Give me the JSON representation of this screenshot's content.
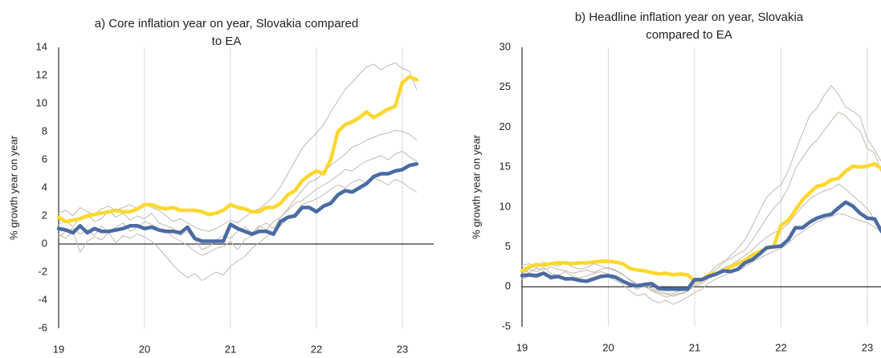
{
  "chart_data": [
    {
      "type": "line",
      "title": [
        "a) Core inflation year on year, Slovakia compared",
        "to EA"
      ],
      "y_label": "% growth year on year",
      "categories": [
        "19",
        null,
        null,
        null,
        null,
        null,
        null,
        null,
        null,
        null,
        null,
        null,
        "20",
        null,
        null,
        null,
        null,
        null,
        null,
        null,
        null,
        null,
        null,
        null,
        "21",
        null,
        null,
        null,
        null,
        null,
        null,
        null,
        null,
        null,
        null,
        null,
        "22",
        null,
        null,
        null,
        null,
        null,
        null,
        null,
        null,
        null,
        null,
        null,
        "23",
        null,
        null
      ],
      "ylim": [
        -6,
        14
      ],
      "yticks": [
        -6,
        -4,
        -2,
        0,
        2,
        4,
        6,
        8,
        10,
        12,
        14
      ],
      "grid": true,
      "series": [
        {
          "color": "#c4b8ad",
          "values": [
            2.2,
            2.4,
            2.0,
            2.6,
            2.3,
            2.1,
            2.5,
            2.7,
            2.4,
            2.6,
            2.8,
            2.5,
            2.9,
            2.6,
            2.4,
            2.0,
            1.6,
            1.8,
            1.5,
            1.2,
            1.0,
            0.9,
            1.1,
            1.4,
            1.7,
            1.5,
            1.9,
            2.3,
            2.5,
            2.9,
            3.4,
            4.1,
            5.0,
            5.9,
            6.8,
            7.4,
            7.9,
            8.5,
            9.4,
            10.2,
            11.0,
            11.5,
            12.1,
            12.6,
            12.8,
            12.4,
            12.7,
            12.9,
            12.5,
            12.3,
            11.0
          ]
        },
        {
          "color": "#c4b8ad",
          "values": [
            0.7,
            0.4,
            0.9,
            -0.6,
            0.2,
            0.5,
            0.3,
            0.8,
            0.1,
            0.6,
            0.4,
            0.7,
            0.5,
            0.2,
            -0.3,
            -0.9,
            -1.5,
            -2.0,
            -2.4,
            -2.1,
            -2.6,
            -2.3,
            -2.0,
            -2.2,
            -1.6,
            -1.2,
            -0.9,
            -0.3,
            0.1,
            0.5,
            0.9,
            1.3,
            1.8,
            2.2,
            2.8,
            3.0,
            3.2,
            3.5,
            3.9,
            4.2,
            4.0,
            4.4,
            4.6,
            4.3,
            4.7,
            4.5,
            4.2,
            4.6,
            4.4,
            4.0,
            3.7
          ]
        },
        {
          "color": "#c4b8ad",
          "values": [
            1.4,
            1.7,
            1.2,
            1.9,
            2.1,
            1.6,
            1.8,
            2.4,
            1.9,
            2.2,
            1.7,
            2.0,
            1.8,
            2.2,
            1.5,
            1.3,
            1.1,
            0.6,
            0.9,
            0.3,
            -0.4,
            -0.2,
            0.3,
            0.6,
            0.4,
            0.9,
            1.2,
            0.8,
            1.3,
            1.0,
            1.6,
            1.9,
            2.5,
            3.2,
            3.8,
            4.4,
            4.6,
            5.1,
            5.6,
            6.0,
            6.4,
            6.9,
            7.1,
            7.4,
            7.6,
            7.8,
            7.9,
            8.1,
            8.0,
            7.8,
            7.4
          ]
        },
        {
          "color": "#c4b8ad",
          "values": [
            0.5,
            0.9,
            1.1,
            0.7,
            1.0,
            0.6,
            1.3,
            0.8,
            1.2,
            1.5,
            0.9,
            1.2,
            1.6,
            1.4,
            1.1,
            0.9,
            0.5,
            0.2,
            -0.1,
            -0.5,
            -0.8,
            -0.6,
            -0.3,
            -0.2,
            0.2,
            -0.4,
            0.3,
            0.6,
            1.2,
            1.5,
            1.1,
            1.9,
            2.4,
            2.9,
            3.1,
            3.5,
            3.9,
            4.2,
            4.5,
            4.9,
            5.3,
            5.2,
            5.6,
            5.9,
            6.1,
            6.3,
            6.0,
            6.4,
            6.6,
            6.2,
            5.9
          ]
        },
        {
          "color": "#fcd82f",
          "values": [
            1.9,
            1.6,
            1.7,
            1.8,
            2.0,
            2.1,
            2.2,
            2.3,
            2.4,
            2.3,
            2.3,
            2.5,
            2.8,
            2.8,
            2.6,
            2.5,
            2.6,
            2.4,
            2.4,
            2.4,
            2.3,
            2.1,
            2.2,
            2.4,
            2.8,
            2.6,
            2.5,
            2.3,
            2.3,
            2.6,
            2.6,
            2.9,
            3.5,
            3.8,
            4.5,
            4.9,
            5.2,
            5.0,
            6.0,
            8.0,
            8.5,
            8.7,
            9.0,
            9.4,
            9.0,
            9.3,
            9.6,
            9.8,
            11.5,
            11.9,
            11.7
          ]
        },
        {
          "color": "#4a6ba3",
          "values": [
            1.1,
            1.0,
            0.8,
            1.3,
            0.8,
            1.1,
            0.9,
            0.9,
            1.0,
            1.1,
            1.3,
            1.3,
            1.1,
            1.2,
            1.0,
            0.9,
            0.9,
            0.8,
            1.2,
            0.4,
            0.2,
            0.2,
            0.2,
            0.2,
            1.4,
            1.1,
            0.9,
            0.7,
            0.9,
            0.9,
            0.7,
            1.6,
            1.9,
            2.0,
            2.6,
            2.6,
            2.3,
            2.7,
            2.9,
            3.5,
            3.8,
            3.7,
            4.0,
            4.3,
            4.8,
            5.0,
            5.0,
            5.2,
            5.3,
            5.6,
            5.7
          ]
        }
      ]
    },
    {
      "type": "line",
      "title": [
        "b) Headline inflation year on year, Slovakia",
        "compared to EA"
      ],
      "y_label": "% growth year on year",
      "categories": [
        "19",
        null,
        null,
        null,
        null,
        null,
        null,
        null,
        null,
        null,
        null,
        null,
        "20",
        null,
        null,
        null,
        null,
        null,
        null,
        null,
        null,
        null,
        null,
        null,
        "21",
        null,
        null,
        null,
        null,
        null,
        null,
        null,
        null,
        null,
        null,
        null,
        "22",
        null,
        null,
        null,
        null,
        null,
        null,
        null,
        null,
        null,
        null,
        null,
        "23",
        null,
        null
      ],
      "ylim": [
        -5,
        30
      ],
      "yticks": [
        -5,
        0,
        5,
        10,
        15,
        20,
        25,
        30
      ],
      "grid": true,
      "series": [
        {
          "color": "#c4b8ad",
          "values": [
            2.7,
            2.9,
            2.4,
            3.1,
            2.8,
            2.6,
            3.0,
            2.5,
            2.2,
            2.4,
            2.9,
            2.6,
            2.3,
            2.0,
            1.5,
            0.9,
            0.4,
            0.3,
            -0.2,
            -0.5,
            -0.8,
            -1.2,
            -0.9,
            -0.6,
            0.3,
            0.6,
            1.5,
            2.2,
            3.0,
            3.9,
            4.8,
            5.9,
            7.6,
            9.5,
            11.2,
            12.1,
            12.8,
            14.5,
            17.0,
            19.3,
            21.5,
            22.4,
            24.0,
            25.2,
            24.1,
            22.5,
            22.0,
            21.3,
            18.5,
            17.2,
            15.6
          ]
        },
        {
          "color": "#c4b8ad",
          "values": [
            1.0,
            1.3,
            1.1,
            1.5,
            0.9,
            1.2,
            0.8,
            1.0,
            0.6,
            0.9,
            1.2,
            1.5,
            1.2,
            0.8,
            0.3,
            -0.5,
            -1.1,
            -0.9,
            -1.6,
            -2.0,
            -1.7,
            -2.2,
            -1.8,
            -1.3,
            -0.7,
            -0.3,
            0.5,
            1.0,
            1.4,
            1.8,
            2.0,
            2.5,
            3.1,
            3.6,
            4.0,
            4.5,
            4.8,
            5.4,
            6.3,
            6.9,
            7.5,
            8.1,
            8.5,
            8.8,
            9.2,
            9.0,
            8.6,
            8.3,
            8.0,
            7.5,
            6.8
          ]
        },
        {
          "color": "#c4b8ad",
          "values": [
            2.0,
            1.8,
            2.3,
            2.1,
            2.5,
            2.2,
            2.0,
            1.7,
            1.9,
            2.1,
            1.8,
            2.2,
            2.4,
            2.1,
            1.6,
            0.8,
            0.2,
            0.0,
            -0.4,
            -0.7,
            -1.0,
            -0.8,
            -0.5,
            -0.1,
            0.5,
            0.8,
            1.7,
            2.6,
            3.2,
            3.5,
            4.1,
            4.6,
            5.8,
            7.2,
            8.6,
            9.9,
            10.8,
            12.4,
            14.8,
            16.2,
            17.5,
            18.4,
            19.6,
            20.8,
            21.9,
            21.4,
            20.3,
            19.5,
            17.3,
            16.8,
            14.2
          ]
        },
        {
          "color": "#c4b8ad",
          "values": [
            1.6,
            2.2,
            1.9,
            2.4,
            1.7,
            1.4,
            1.9,
            1.3,
            1.1,
            1.4,
            1.7,
            1.9,
            1.5,
            1.3,
            0.9,
            0.2,
            -0.3,
            0.1,
            -0.5,
            -0.9,
            -1.3,
            -1.0,
            -0.8,
            -0.6,
            0.1,
            0.4,
            1.1,
            1.8,
            2.4,
            2.7,
            3.3,
            3.9,
            4.6,
            5.5,
            6.2,
            6.8,
            7.1,
            7.9,
            9.0,
            10.1,
            11.0,
            11.6,
            12.0,
            12.3,
            12.9,
            12.2,
            11.4,
            10.6,
            9.8,
            8.4,
            7.2
          ]
        },
        {
          "color": "#fcd82f",
          "values": [
            2.0,
            2.5,
            2.8,
            2.7,
            2.9,
            3.0,
            3.0,
            2.9,
            3.0,
            3.0,
            3.1,
            3.2,
            3.2,
            3.1,
            2.9,
            2.3,
            2.1,
            2.0,
            1.8,
            1.6,
            1.7,
            1.5,
            1.6,
            1.5,
            0.7,
            0.9,
            1.5,
            1.7,
            2.0,
            2.5,
            2.9,
            3.3,
            4.0,
            4.4,
            4.8,
            5.1,
            7.7,
            8.3,
            9.6,
            10.9,
            11.8,
            12.6,
            12.8,
            13.4,
            13.6,
            14.5,
            15.1,
            15.0,
            15.1,
            15.4,
            14.8
          ]
        },
        {
          "color": "#4a6ba3",
          "values": [
            1.4,
            1.5,
            1.4,
            1.7,
            1.2,
            1.3,
            1.0,
            1.0,
            0.8,
            0.7,
            1.0,
            1.3,
            1.4,
            1.2,
            0.7,
            0.3,
            0.1,
            0.3,
            0.4,
            -0.2,
            -0.3,
            -0.3,
            -0.3,
            -0.3,
            0.9,
            0.9,
            1.3,
            1.6,
            2.0,
            1.9,
            2.2,
            3.0,
            3.4,
            4.1,
            4.9,
            5.0,
            5.1,
            5.9,
            7.4,
            7.4,
            8.1,
            8.6,
            8.9,
            9.1,
            9.9,
            10.6,
            10.1,
            9.2,
            8.6,
            8.5,
            6.9
          ]
        }
      ]
    }
  ]
}
